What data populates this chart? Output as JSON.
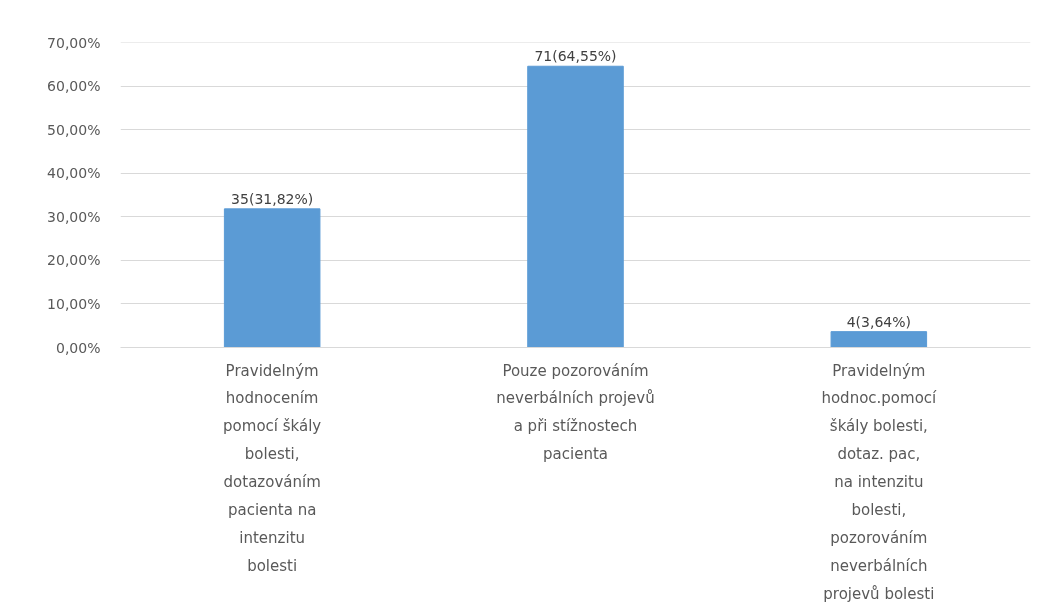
{
  "chart_data": {
    "type": "bar",
    "categories": [
      "Pravidelným\nhodnocením\npomocí škály\nbolesti,\ndotazováním\npacienta na\nintenzitu\nbolesti",
      "Pouze pozorováním\nneverbálních projevů\na při stížnostech\npacienta",
      "Pravidelným\nhodnoc.pomocí\nškály bolesti,\ndotaz. pac,\nna intenzitu\nbolesti,\npozorováním\nneverbálních\nprojevů bolesti"
    ],
    "values": [
      31.82,
      64.55,
      3.64
    ],
    "value_labels": [
      "35(31,82%)",
      "71(64,55%)",
      "4(3,64%)"
    ],
    "color": "#5b9bd5",
    "ylim": [
      0,
      70
    ],
    "yticks": [
      {
        "value": 0,
        "label": "0,00%"
      },
      {
        "value": 10,
        "label": "10,00%"
      },
      {
        "value": 20,
        "label": "20,00%"
      },
      {
        "value": 30,
        "label": "30,00%"
      },
      {
        "value": 40,
        "label": "40,00%"
      },
      {
        "value": 50,
        "label": "50,00%"
      },
      {
        "value": 60,
        "label": "60,00%"
      },
      {
        "value": 70,
        "label": "70,00%"
      }
    ],
    "grid": "y"
  }
}
